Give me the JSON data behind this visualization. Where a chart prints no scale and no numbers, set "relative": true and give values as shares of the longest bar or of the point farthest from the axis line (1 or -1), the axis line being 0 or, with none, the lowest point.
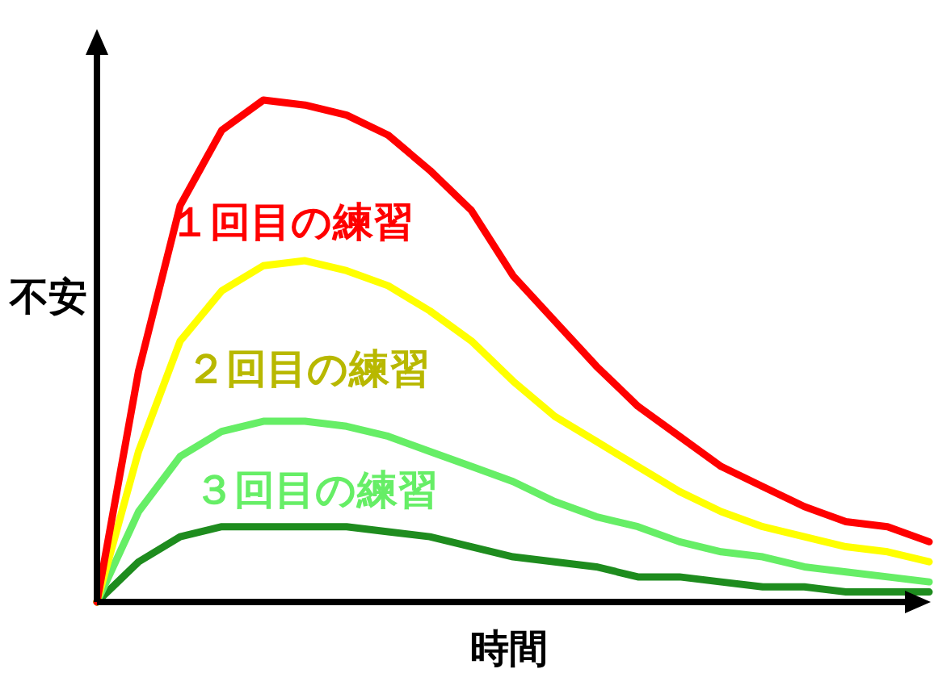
{
  "chart_data": {
    "type": "line",
    "relative": true,
    "xlabel": "時間",
    "ylabel": "不安",
    "line_style": "solid",
    "categories": [
      null,
      null,
      null,
      null,
      null,
      null,
      null,
      null,
      null,
      null,
      null,
      null,
      null,
      null,
      null,
      null,
      null,
      null,
      null,
      null,
      null
    ],
    "series": [
      {
        "name": "１回目の練習",
        "color": "#ff0000",
        "values": [
          0,
          0.46,
          0.79,
          0.94,
          1,
          0.99,
          0.97,
          0.93,
          0.86,
          0.78,
          0.65,
          0.56,
          0.47,
          0.39,
          0.33,
          0.27,
          0.23,
          0.19,
          0.16,
          0.15,
          0.12
        ]
      },
      {
        "name": "２回目の練習",
        "color": "#ffff00",
        "values": [
          0,
          0.3,
          0.52,
          0.62,
          0.67,
          0.68,
          0.66,
          0.63,
          0.58,
          0.52,
          0.44,
          0.37,
          0.32,
          0.27,
          0.22,
          0.18,
          0.15,
          0.13,
          0.11,
          0.1,
          0.08
        ]
      },
      {
        "name": "３回目の練習",
        "color": "#66ee66",
        "values": [
          0,
          0.18,
          0.29,
          0.34,
          0.36,
          0.36,
          0.35,
          0.33,
          0.3,
          0.27,
          0.24,
          0.2,
          0.17,
          0.15,
          0.12,
          0.1,
          0.09,
          0.07,
          0.06,
          0.05,
          0.04
        ]
      },
      {
        "color": "#1e8c1e",
        "values": [
          0,
          0.08,
          0.13,
          0.15,
          0.15,
          0.15,
          0.15,
          0.14,
          0.13,
          0.11,
          0.09,
          0.08,
          0.07,
          0.05,
          0.05,
          0.04,
          0.03,
          0.03,
          0.02,
          0.02,
          0.02
        ]
      }
    ]
  }
}
